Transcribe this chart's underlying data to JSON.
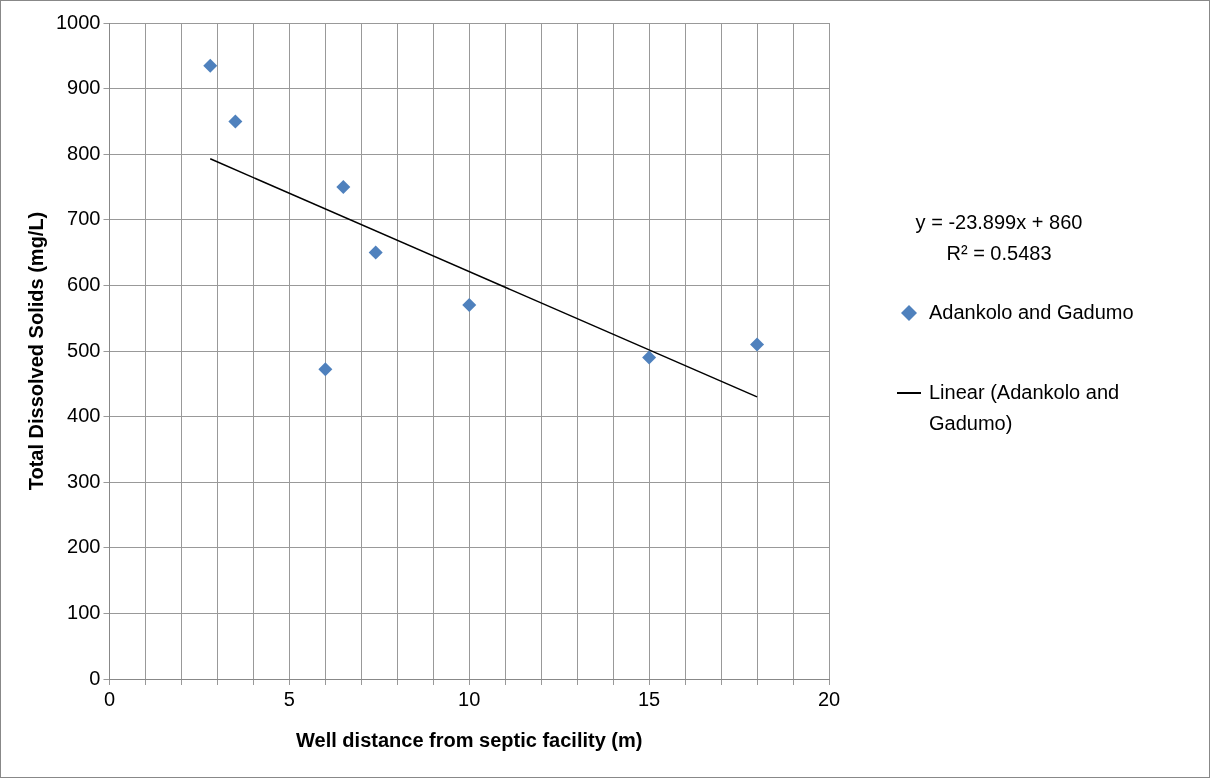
{
  "chart_data": {
    "type": "scatter",
    "xlabel": "Well distance from septic facility (m)",
    "ylabel": "Total Dissolved Solids (mg/L)",
    "xlim": [
      0,
      20
    ],
    "ylim": [
      0,
      1000
    ],
    "xticks": [
      0,
      {
        "value": 1,
        "label": null
      },
      {
        "value": 2,
        "label": null
      },
      {
        "value": 3,
        "label": null
      },
      {
        "value": 4,
        "label": null
      },
      5,
      {
        "value": 6,
        "label": null
      },
      {
        "value": 7,
        "label": null
      },
      {
        "value": 8,
        "label": null
      },
      {
        "value": 9,
        "label": null
      },
      10,
      {
        "value": 11,
        "label": null
      },
      {
        "value": 12,
        "label": null
      },
      {
        "value": 13,
        "label": null
      },
      {
        "value": 14,
        "label": null
      },
      15,
      {
        "value": 16,
        "label": null
      },
      {
        "value": 17,
        "label": null
      },
      {
        "value": 18,
        "label": null
      },
      {
        "value": 19,
        "label": null
      },
      20
    ],
    "yticks": [
      0,
      100,
      200,
      300,
      400,
      500,
      600,
      700,
      800,
      900,
      1000
    ],
    "grid": true,
    "legend": "right",
    "annotations": [
      "y = -23.899x + 860",
      "R² = 0.5483"
    ],
    "series": [
      {
        "name": "Adankolo and Gadumo",
        "type": "scatter",
        "color": "#4f81bd",
        "marker": "diamond",
        "x": [
          2.8,
          3.5,
          6.5,
          7.4,
          6,
          10,
          15,
          18
        ],
        "values": [
          935,
          850,
          750,
          650,
          472,
          570,
          490,
          510
        ]
      },
      {
        "name": "Linear (Adankolo and Gadumo)",
        "type": "line",
        "color": "#000000",
        "marker": "none",
        "line_style": "solid",
        "x": [
          2.8,
          18
        ],
        "values": [
          793,
          430
        ]
      }
    ]
  }
}
